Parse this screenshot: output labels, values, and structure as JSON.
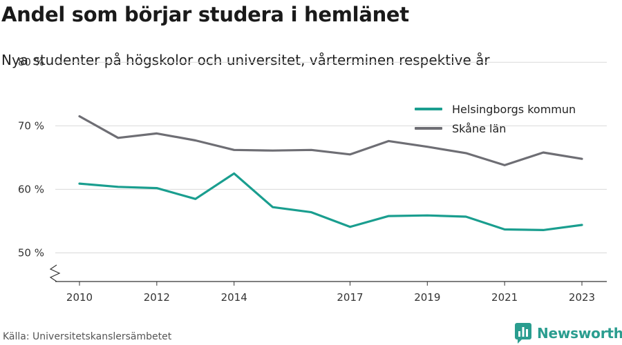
{
  "title": "Andel som börjar studera i hemlänet",
  "subtitle": "Nya studenter på högskolor och universitet, vårterminen respektive år",
  "source": "Källa: Universitetskanslersämbetet",
  "brand": {
    "name": "Newsworthy",
    "color": "#2a9d8f"
  },
  "chart_data": {
    "type": "line",
    "x": [
      2010,
      2011,
      2012,
      2013,
      2014,
      2015,
      2016,
      2017,
      2018,
      2019,
      2020,
      2021,
      2022,
      2023
    ],
    "x_tick_labels": [
      "2010",
      "2012",
      "2014",
      "2017",
      "2019",
      "2021",
      "2023"
    ],
    "y_ticks": [
      50,
      60,
      70,
      80
    ],
    "y_tick_labels": [
      "50 %",
      "60 %",
      "70 %",
      "80 %"
    ],
    "ylim": [
      45.5,
      81
    ],
    "y_axis_break": true,
    "grid": true,
    "legend_position": "top-right",
    "series": [
      {
        "name": "Helsingborgs kommun",
        "color": "#1a9e8f",
        "values": [
          60.9,
          60.4,
          60.2,
          58.5,
          62.5,
          57.2,
          56.4,
          54.1,
          55.8,
          55.9,
          55.7,
          53.7,
          53.6,
          54.4
        ]
      },
      {
        "name": "Skåne län",
        "color": "#6e6e74",
        "values": [
          71.5,
          68.1,
          68.8,
          67.7,
          66.2,
          66.1,
          66.2,
          65.5,
          67.6,
          66.7,
          65.7,
          63.8,
          65.8,
          64.8
        ]
      }
    ]
  }
}
